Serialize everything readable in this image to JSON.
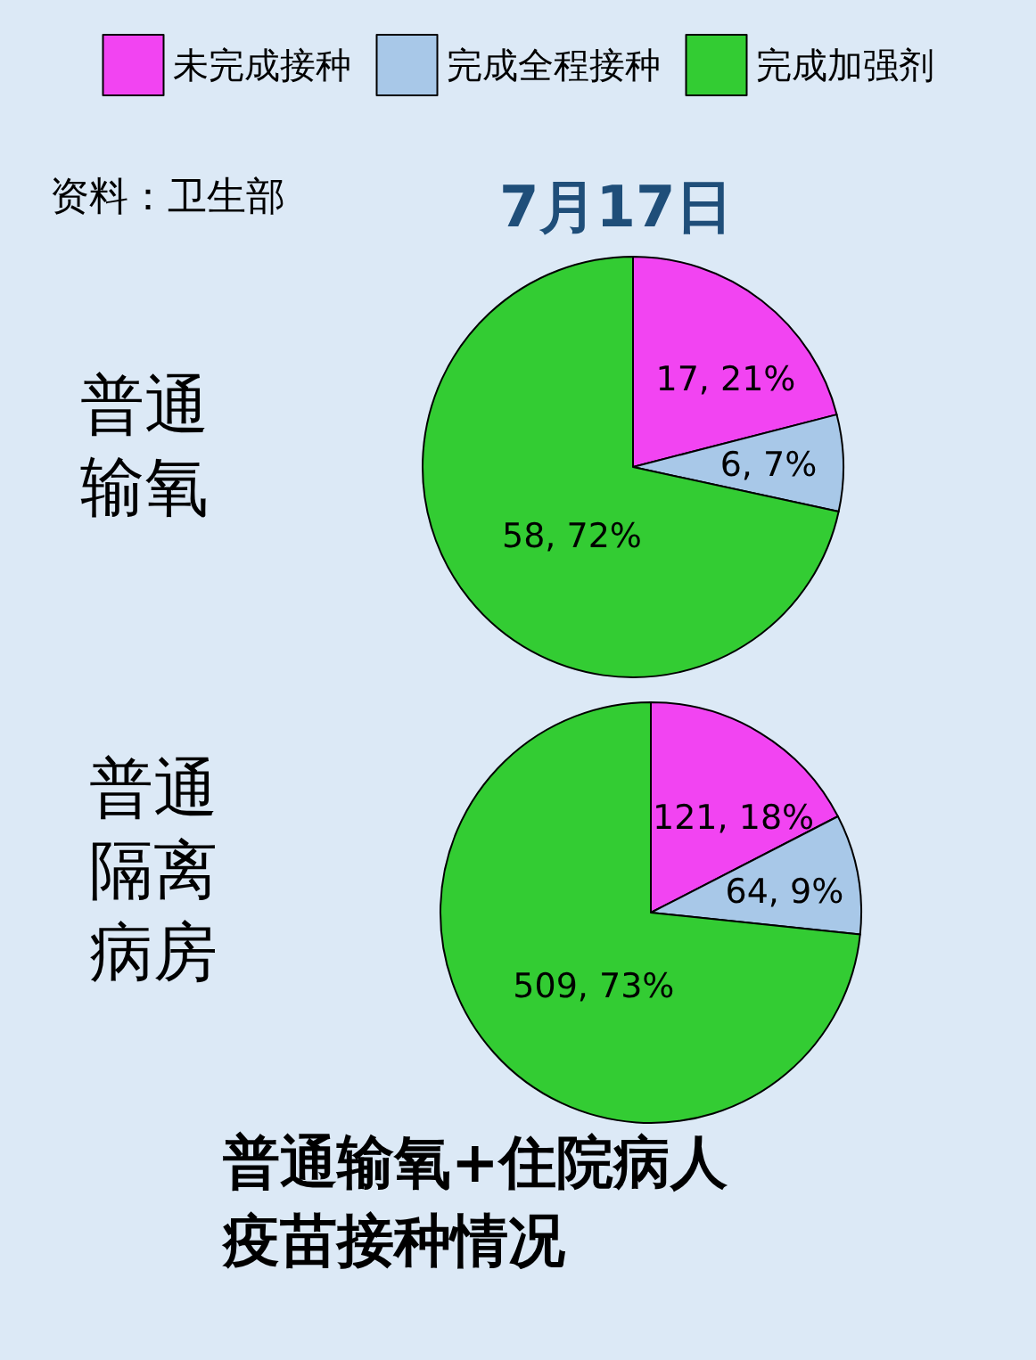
{
  "chart_data": [
    {
      "type": "pie",
      "title": "普通输氧",
      "subtitle": "7月17日",
      "annotations": [
        "资料：卫生部"
      ],
      "legend": "top",
      "categories": [
        "未完成接种",
        "完成全程接种",
        "完成加强剂"
      ],
      "values": [
        17,
        6,
        58
      ],
      "value_labels": [
        "17, 21%",
        "6, 7%",
        "58, 72%"
      ],
      "colors": [
        "#f244f2",
        "#a8c8e8",
        "#33cc33"
      ]
    },
    {
      "type": "pie",
      "title": "普通隔离病房",
      "annotations": [
        "普通输氧+住院病人疫苗接种情况"
      ],
      "categories": [
        null,
        null,
        null
      ],
      "values": [
        121,
        64,
        509
      ],
      "value_labels": [
        "121, 18%",
        "64, 9%",
        "509, 73%"
      ],
      "colors": [
        "#f244f2",
        "#a8c8e8",
        "#33cc33"
      ]
    }
  ]
}
